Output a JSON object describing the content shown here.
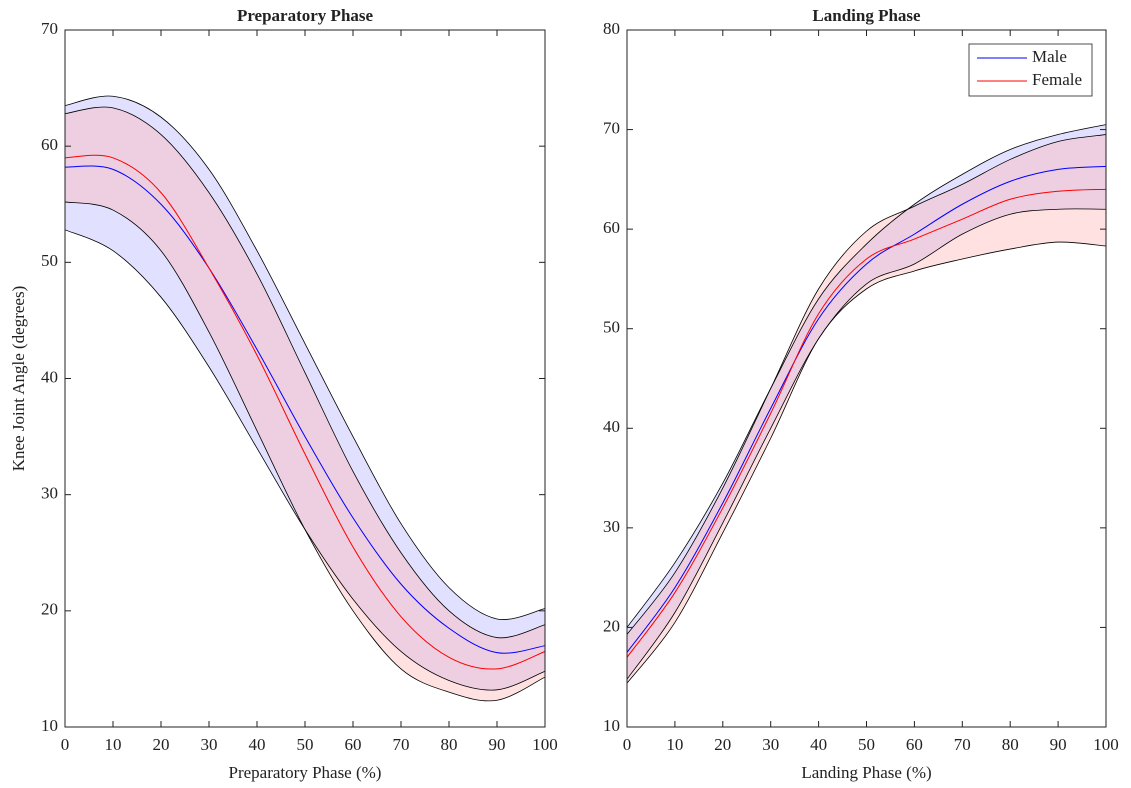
{
  "chart_data": [
    {
      "type": "line",
      "title": "Preparatory Phase",
      "xlabel": "Preparatory Phase (%)",
      "ylabel": "Knee Joint Angle (degrees)",
      "x": [
        0,
        10,
        20,
        30,
        40,
        50,
        60,
        70,
        80,
        90,
        100
      ],
      "xlim": [
        0,
        100
      ],
      "xticks": [
        0,
        10,
        20,
        30,
        40,
        50,
        60,
        70,
        80,
        90,
        100
      ],
      "ylim": [
        10,
        70
      ],
      "yticks": [
        10,
        20,
        30,
        40,
        50,
        60,
        70
      ],
      "series": [
        {
          "color": "#0000ff",
          "band_color": "#b4b4ff",
          "values": [
            58.2,
            58,
            55,
            49.5,
            42.5,
            35,
            28,
            22.3,
            18.5,
            16.4,
            17
          ],
          "upper": [
            63.5,
            64.3,
            62.5,
            58,
            51,
            43,
            35,
            27.5,
            22,
            19.3,
            20.2
          ],
          "lower": [
            52.8,
            51,
            47,
            41,
            34,
            27,
            21,
            16.5,
            14,
            13.2,
            14.8
          ]
        },
        {
          "color": "#ff0000",
          "band_color": "#ffb4b4",
          "values": [
            59,
            59,
            56,
            49.5,
            42,
            33.5,
            25.5,
            19.5,
            16,
            15,
            16.5
          ],
          "upper": [
            62.8,
            63.3,
            61,
            56,
            49,
            40.5,
            32,
            25,
            20,
            17.7,
            18.8
          ],
          "lower": [
            55.2,
            54.5,
            51,
            44,
            35.5,
            27,
            20,
            15,
            13,
            12.3,
            14.3
          ]
        }
      ]
    },
    {
      "type": "line",
      "title": "Landing Phase",
      "xlabel": "Landing Phase (%)",
      "legend": "upper right",
      "x": [
        0,
        10,
        20,
        30,
        40,
        50,
        60,
        70,
        80,
        90,
        100
      ],
      "xlim": [
        0,
        100
      ],
      "xticks": [
        0,
        10,
        20,
        30,
        40,
        50,
        60,
        70,
        80,
        90,
        100
      ],
      "ylim": [
        10,
        80
      ],
      "yticks": [
        10,
        20,
        30,
        40,
        50,
        60,
        70,
        80
      ],
      "series": [
        {
          "name": "Male",
          "color": "#0000ff",
          "band_color": "#b4b4ff",
          "values": [
            17.5,
            24,
            32.5,
            42,
            51,
            56.5,
            59.5,
            62.5,
            64.8,
            66,
            66.3
          ],
          "upper": [
            20,
            26.5,
            34.5,
            44,
            53,
            58.5,
            62.5,
            65.5,
            68,
            69.5,
            70.5
          ],
          "lower": [
            14.8,
            21.5,
            30.5,
            40,
            49,
            54.5,
            56.5,
            59.5,
            61.5,
            62,
            62
          ]
        },
        {
          "name": "Female",
          "color": "#ff0000",
          "band_color": "#ffb4b4",
          "values": [
            17,
            23.5,
            32,
            41.5,
            51.5,
            57,
            59,
            61,
            63,
            63.8,
            64
          ],
          "upper": [
            19.3,
            25.5,
            34,
            44,
            54,
            59.8,
            62.3,
            64.5,
            67,
            68.8,
            69.5
          ],
          "lower": [
            14.4,
            20.5,
            29.5,
            39,
            49,
            54,
            55.8,
            57,
            58,
            58.7,
            58.3
          ]
        }
      ]
    }
  ]
}
